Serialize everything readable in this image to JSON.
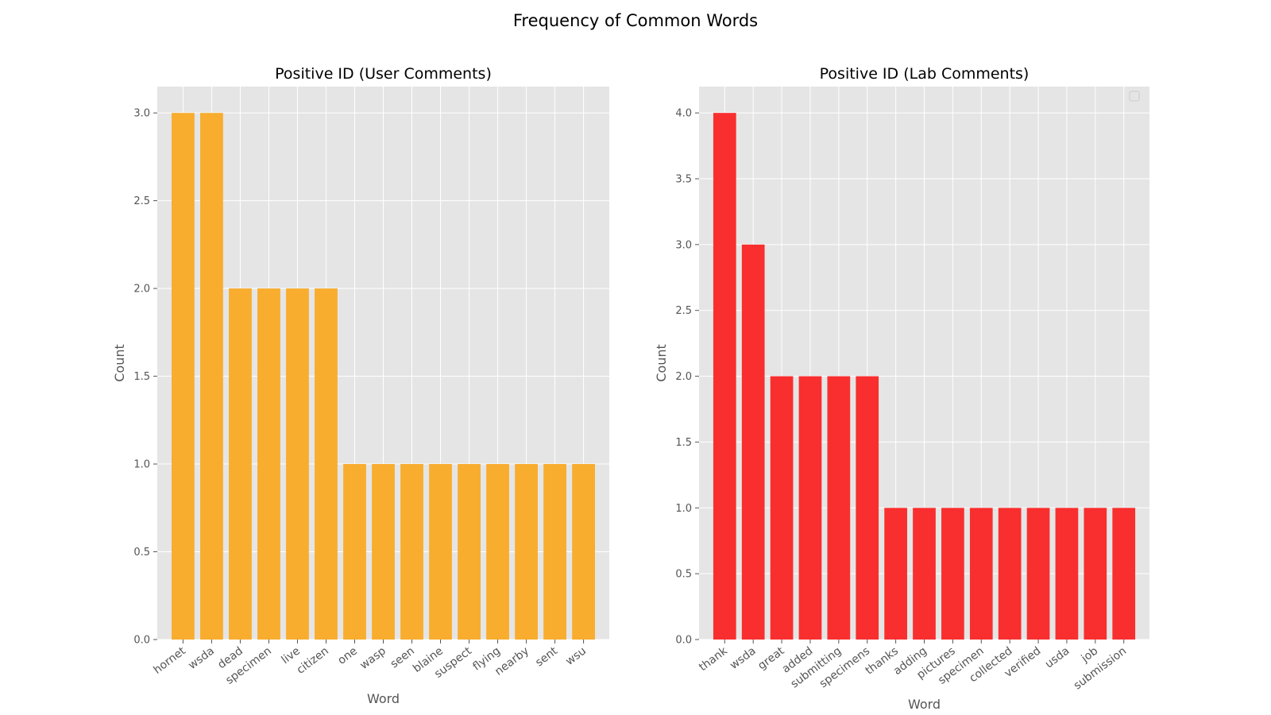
{
  "figure": {
    "suptitle": "Frequency of Common Words"
  },
  "chart_data": [
    {
      "type": "bar",
      "title": "Positive ID (User Comments)",
      "xlabel": "Word",
      "ylabel": "Count",
      "ylim": [
        0,
        3.15
      ],
      "yticks": [
        0.0,
        0.5,
        1.0,
        1.5,
        2.0,
        2.5,
        3.0
      ],
      "grid": true,
      "legend": "none",
      "color": "#f8ad2f",
      "categories": [
        "hornet",
        "wsda",
        "dead",
        "specimen",
        "live",
        "citizen",
        "one",
        "wasp",
        "seen",
        "blaine",
        "suspect",
        "flying",
        "nearby",
        "sent",
        "wsu"
      ],
      "values": [
        3,
        3,
        2,
        2,
        2,
        2,
        1,
        1,
        1,
        1,
        1,
        1,
        1,
        1,
        1
      ]
    },
    {
      "type": "bar",
      "title": "Positive ID (Lab Comments)",
      "xlabel": "Word",
      "ylabel": "Count",
      "ylim": [
        0,
        4.2
      ],
      "yticks": [
        0.0,
        0.5,
        1.0,
        1.5,
        2.0,
        2.5,
        3.0,
        3.5,
        4.0
      ],
      "grid": true,
      "legend": "top-right (empty)",
      "color": "#f92f2f",
      "categories": [
        "thank",
        "wsda",
        "great",
        "added",
        "submitting",
        "specimens",
        "thanks",
        "adding",
        "pictures",
        "specimen",
        "collected",
        "verified",
        "usda",
        "job",
        "submission"
      ],
      "values": [
        4,
        3,
        2,
        2,
        2,
        2,
        1,
        1,
        1,
        1,
        1,
        1,
        1,
        1,
        1
      ]
    }
  ]
}
